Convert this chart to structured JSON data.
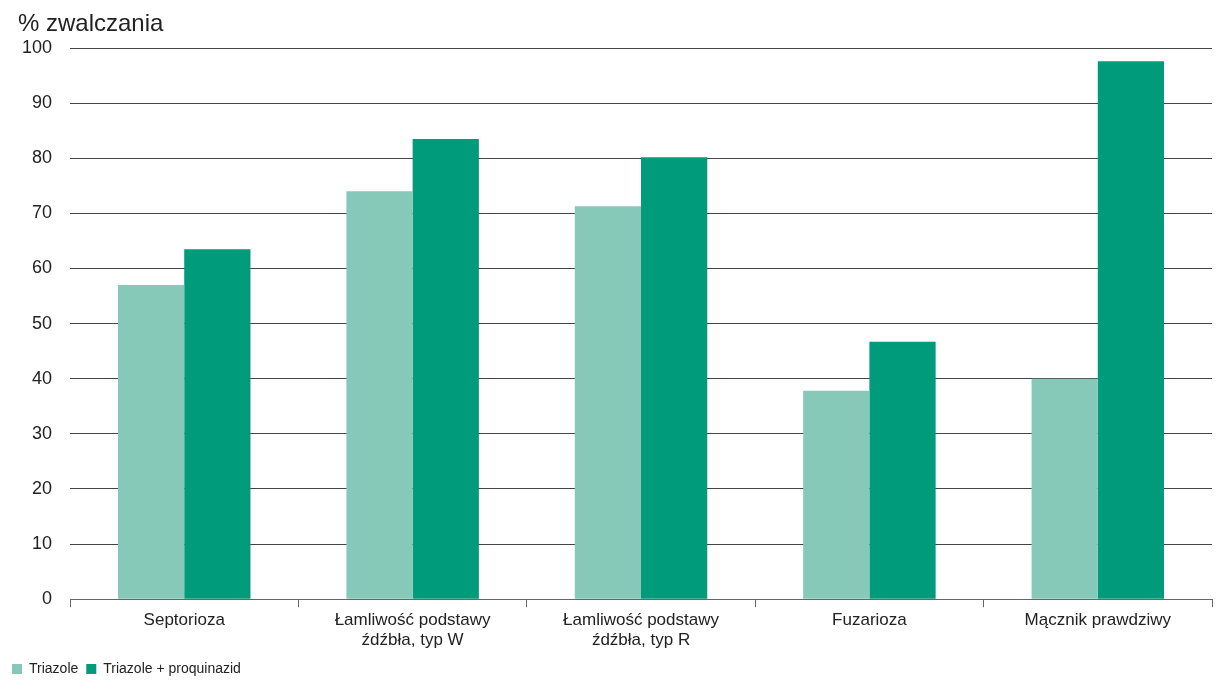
{
  "chart_data": {
    "type": "bar",
    "ylabel": "% zwalczania",
    "categories": [
      "Septorioza",
      "Łamliwość podstawy źdźbła, typ W",
      "Łamliwość podstawy źdźbła, typ R",
      "Fuzarioza",
      "Mącznik prawdziwy"
    ],
    "series": [
      {
        "name": "Triazole",
        "color": "#86c9b9",
        "values": [
          57,
          74,
          71.3,
          37.8,
          40
        ]
      },
      {
        "name": "Triazole + proquinazid",
        "color": "#009b7a",
        "values": [
          63.5,
          83.5,
          80.2,
          46.7,
          97.6
        ]
      }
    ],
    "ylim": [
      0,
      100
    ],
    "yticks": [
      0,
      10,
      20,
      30,
      40,
      50,
      60,
      70,
      80,
      90,
      100
    ],
    "grid": "y",
    "legend": "bottom left"
  }
}
